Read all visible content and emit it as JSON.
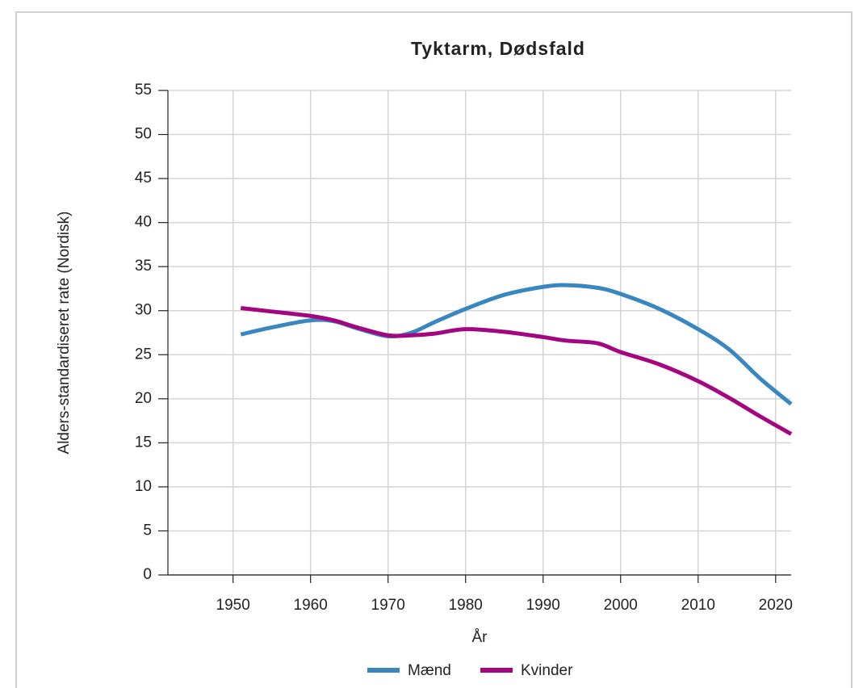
{
  "chart_data": {
    "type": "line",
    "title": "Tyktarm, Dødsfald",
    "xlabel": "År",
    "ylabel": "Alders-standardiseret rate (Nordisk)",
    "x": [
      1951,
      1955,
      1960,
      1963,
      1966,
      1970,
      1973,
      1976,
      1980,
      1985,
      1990,
      1993,
      1997,
      2000,
      2005,
      2010,
      2014,
      2018,
      2022
    ],
    "series": [
      {
        "name": "Mænd",
        "color": "#3a87bf",
        "values": [
          27.3,
          28.1,
          28.9,
          28.8,
          28.0,
          27.1,
          27.5,
          28.7,
          30.2,
          31.8,
          32.7,
          32.9,
          32.6,
          31.9,
          30.2,
          27.9,
          25.6,
          22.3,
          19.4
        ]
      },
      {
        "name": "Kvinder",
        "color": "#a3067f",
        "values": [
          30.3,
          29.9,
          29.4,
          28.9,
          28.1,
          27.2,
          27.2,
          27.4,
          27.9,
          27.6,
          27.0,
          26.6,
          26.3,
          25.3,
          23.9,
          22.0,
          20.1,
          18.0,
          16.0
        ]
      }
    ],
    "xlim": [
      1941.6,
      2022
    ],
    "xticks": [
      1950,
      1960,
      1970,
      1980,
      1990,
      2000,
      2010,
      2020
    ],
    "ylim": [
      0,
      55
    ],
    "yticks": [
      0,
      5,
      10,
      15,
      20,
      25,
      30,
      35,
      40,
      45,
      50,
      55
    ],
    "grid": true,
    "legend": "bottom"
  }
}
